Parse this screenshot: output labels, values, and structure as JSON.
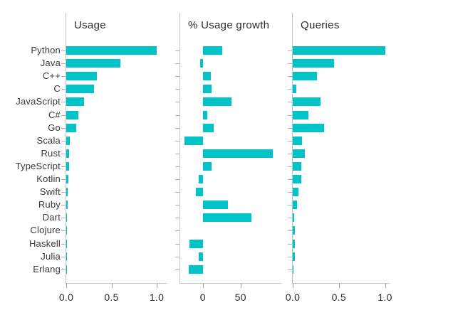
{
  "page": {
    "background_color": "#ffffff"
  },
  "chart_data": {
    "type": "bar",
    "orientation": "horizontal",
    "bar_color": "#00c3c8",
    "axis_color": "#c4c4c4",
    "grid": false,
    "legend_position": "none",
    "categories": [
      "Python",
      "Java",
      "C++",
      "C",
      "JavaScript",
      "C#",
      "Go",
      "Scala",
      "Rust",
      "TypeScript",
      "Kotlin",
      "Swift",
      "Ruby",
      "Dart",
      "Clojure",
      "Haskell",
      "Julia",
      "Erlang"
    ],
    "panels": [
      {
        "title": "Usage",
        "xlabel": "",
        "xlim": [
          0,
          1.11
        ],
        "xticks": [
          {
            "label": "0.0",
            "value": 0
          },
          {
            "label": "0.5",
            "value": 0.5
          },
          {
            "label": "1.0",
            "value": 1.0
          }
        ],
        "values": [
          1.0,
          0.6,
          0.34,
          0.31,
          0.2,
          0.13,
          0.11,
          0.042,
          0.032,
          0.032,
          0.025,
          0.018,
          0.014,
          0.006,
          0.002,
          0.002,
          0.002,
          0.002
        ]
      },
      {
        "title": "% Usage growth",
        "xlabel": "",
        "xlim": [
          -30,
          104
        ],
        "xticks": [
          {
            "label": "0",
            "value": 0
          },
          {
            "label": "50",
            "value": 50
          }
        ],
        "values": [
          26,
          -4,
          11,
          12,
          38,
          6,
          14,
          -24,
          93,
          12,
          -5,
          -9,
          33,
          64,
          0,
          -18,
          -5,
          -19
        ]
      },
      {
        "title": "Queries",
        "xlabel": "",
        "xlim": [
          0,
          1.05
        ],
        "xticks": [
          {
            "label": "0.0",
            "value": 0
          },
          {
            "label": "0.5",
            "value": 0.5
          },
          {
            "label": "1.0",
            "value": 1.0
          }
        ],
        "values": [
          1.0,
          0.45,
          0.26,
          0.04,
          0.3,
          0.17,
          0.34,
          0.1,
          0.13,
          0.09,
          0.09,
          0.065,
          0.045,
          0.015,
          0.025,
          0.025,
          0.025,
          0.01
        ]
      }
    ]
  }
}
